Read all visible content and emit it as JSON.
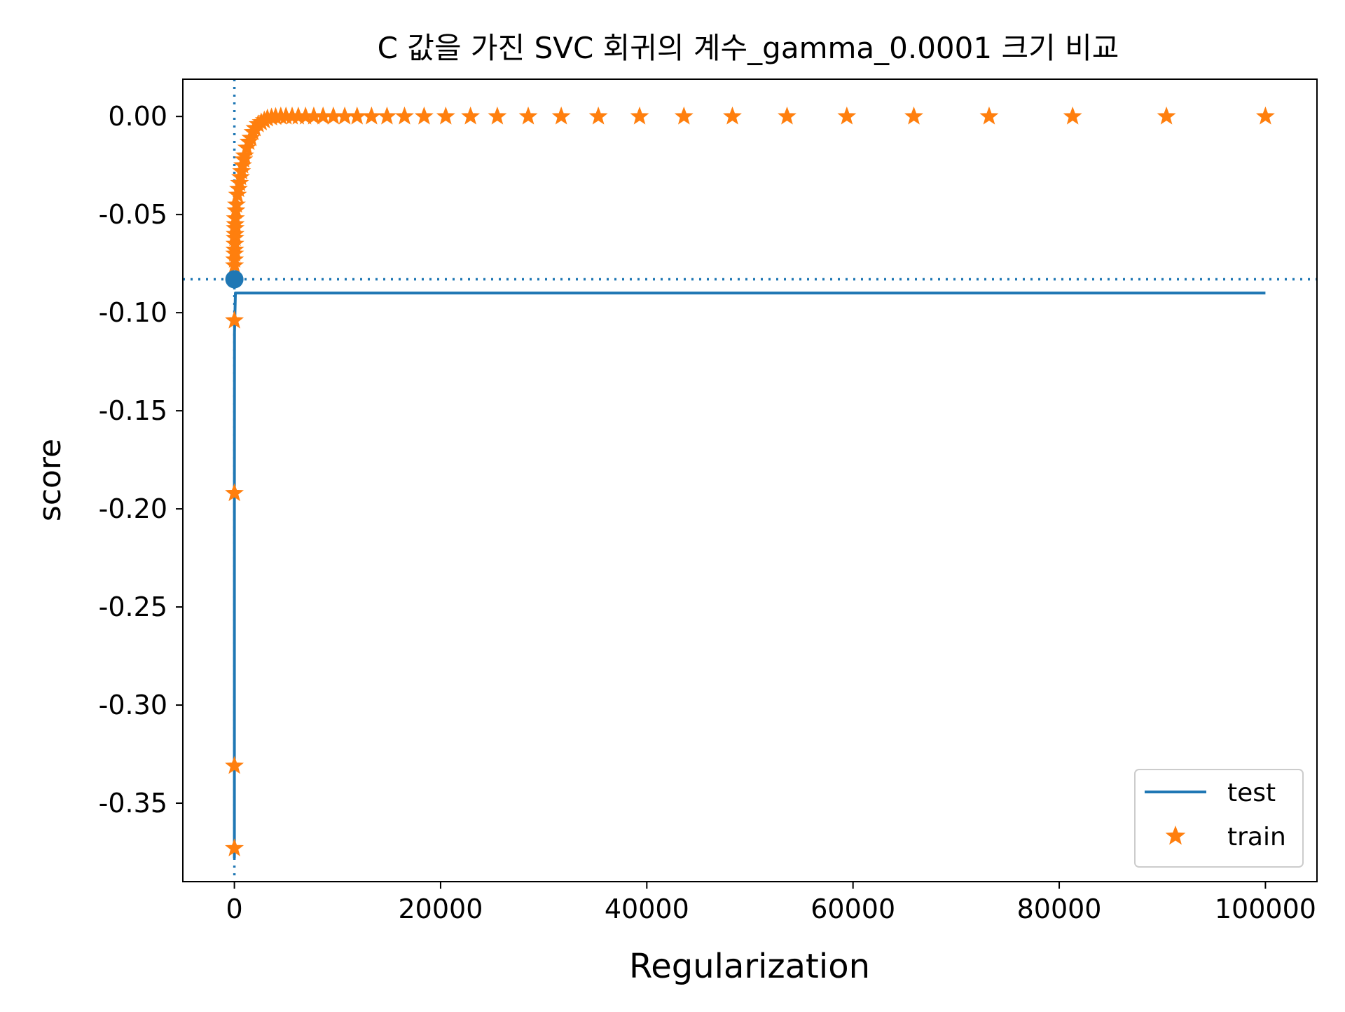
{
  "chart_data": {
    "type": "line",
    "title": "C 값을 가진 SVC 회귀의 계수_gamma_0.0001 크기 비교",
    "xlabel": "Regularization",
    "ylabel": "score",
    "xlim": [
      -5000,
      105000
    ],
    "ylim": [
      -0.39,
      0.019
    ],
    "x_ticks": [
      0,
      20000,
      40000,
      60000,
      80000,
      100000
    ],
    "x_tick_labels": [
      "0",
      "20000",
      "40000",
      "60000",
      "80000",
      "100000"
    ],
    "y_ticks": [
      0.0,
      -0.05,
      -0.1,
      -0.15,
      -0.2,
      -0.25,
      -0.3,
      -0.35
    ],
    "y_tick_labels": [
      "0.00",
      "-0.05",
      "-0.10",
      "-0.15",
      "-0.20",
      "-0.25",
      "-0.30",
      "-0.35"
    ],
    "grid": false,
    "legend_position": "lower-right",
    "series": [
      {
        "name": "test",
        "style": "line",
        "color": "#1f77b4",
        "x": [
          0.001,
          0.01,
          0.1,
          1,
          10,
          100,
          1000,
          10000,
          100000
        ],
        "y": [
          -0.378,
          -0.37,
          -0.33,
          -0.19,
          -0.11,
          -0.09,
          -0.09,
          -0.09,
          -0.09
        ]
      },
      {
        "name": "train",
        "style": "star",
        "color": "#ff7f0e",
        "x": [
          0.001,
          0.01,
          0.1,
          1,
          10,
          20,
          30,
          40,
          50,
          60,
          70,
          80,
          90,
          100,
          150,
          200,
          300,
          400,
          500,
          600,
          700,
          800,
          900,
          1000,
          1200,
          1400,
          1600,
          1800,
          2000,
          2300,
          2600,
          2900,
          3200,
          3600,
          4000,
          4500,
          5000,
          5600,
          6200,
          6900,
          7700,
          8600,
          9600,
          10700,
          11900,
          13300,
          14800,
          16500,
          18400,
          20500,
          22900,
          25500,
          28500,
          31700,
          35300,
          39300,
          43600,
          48300,
          53600,
          59400,
          65900,
          73200,
          81300,
          90400,
          100000
        ],
        "y": [
          -0.373,
          -0.331,
          -0.192,
          -0.104,
          -0.076,
          -0.073,
          -0.07,
          -0.068,
          -0.065,
          -0.062,
          -0.06,
          -0.057,
          -0.055,
          -0.052,
          -0.048,
          -0.045,
          -0.04,
          -0.037,
          -0.034,
          -0.031,
          -0.028,
          -0.025,
          -0.022,
          -0.02,
          -0.016,
          -0.013,
          -0.011,
          -0.008,
          -0.006,
          -0.004,
          -0.003,
          -0.002,
          -0.001,
          -0.0005,
          -0.0002,
          0.0,
          0.0,
          0.0,
          0.0,
          0.0,
          0.0,
          0.0,
          0.0,
          0.0,
          0.0,
          0.0,
          0.0,
          0.0,
          0.0,
          0.0,
          0.0,
          0.0,
          0.0,
          0.0,
          0.0,
          0.0,
          0.0,
          0.0,
          0.0,
          0.0,
          0.0,
          0.0,
          0.0,
          0.0,
          0.0
        ]
      }
    ],
    "best_point": {
      "x": 1,
      "y": -0.083,
      "color": "#1f77b4"
    },
    "reference_lines": {
      "vertical_x": 1,
      "horizontal_y": -0.083,
      "style": "dotted",
      "color": "#1f77b4"
    }
  }
}
